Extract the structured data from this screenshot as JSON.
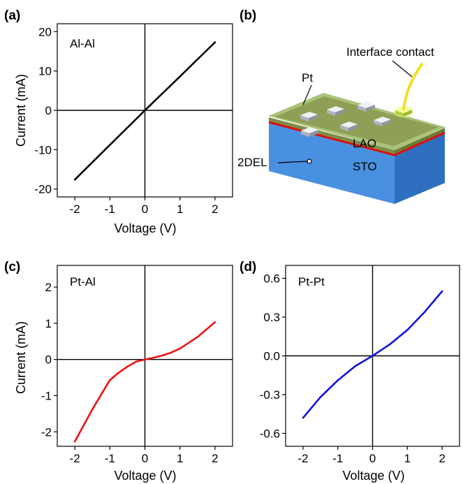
{
  "panels": {
    "a": {
      "label": "(a)",
      "annotation": "Al-Al",
      "xlabel": "Voltage (V)",
      "ylabel": "Current (mA)"
    },
    "b": {
      "label": "(b)",
      "annotations": {
        "interface": "Interface contact",
        "pt": "Pt",
        "lao": "LAO",
        "sto": "STO",
        "del": "2DEL"
      }
    },
    "c": {
      "label": "(c)",
      "annotation": "Pt-Al",
      "xlabel": "Voltage (V)",
      "ylabel": "Current (mA)"
    },
    "d": {
      "label": "(d)",
      "annotation": "Pt-Pt",
      "xlabel": "Voltage (V)",
      "ylabel": ""
    }
  },
  "colors": {
    "a": "#000000",
    "c": "#ee1111",
    "d": "#1111dd",
    "film": "#8f9f55",
    "film_top": "#a9c37a",
    "sto": "#4a90e0",
    "interface_line": "#dd1010",
    "wire": "#f0e020",
    "pad": "#d8dde6"
  },
  "chart_data": [
    {
      "id": "a",
      "type": "line",
      "title": "Al-Al",
      "xlabel": "Voltage (V)",
      "ylabel": "Current (mA)",
      "xlim": [
        -2.5,
        2.5
      ],
      "ylim": [
        -22,
        22
      ],
      "xticks": [
        -2,
        -1,
        0,
        1,
        2
      ],
      "yticks": [
        -20,
        -10,
        0,
        10,
        20
      ],
      "xtick_labels": [
        "-2",
        "-1",
        "0",
        "1",
        "2"
      ],
      "ytick_labels": [
        "-20",
        "-10",
        "0",
        "10",
        "20"
      ],
      "series": [
        {
          "x": [
            -2,
            -1,
            0,
            1,
            2
          ],
          "y": [
            -17.6,
            -8.8,
            0,
            8.6,
            17.3
          ]
        }
      ]
    },
    {
      "id": "c",
      "type": "line",
      "title": "Pt-Al",
      "xlabel": "Voltage (V)",
      "ylabel": "Current (mA)",
      "xlim": [
        -2.5,
        2.5
      ],
      "ylim": [
        -2.4,
        2.6
      ],
      "xticks": [
        -2,
        -1,
        0,
        1,
        2
      ],
      "yticks": [
        -2,
        -1,
        0,
        1,
        2
      ],
      "xtick_labels": [
        "-2",
        "-1",
        "0",
        "1",
        "2"
      ],
      "ytick_labels": [
        "-2",
        "-1",
        "0",
        "1",
        "2"
      ],
      "series": [
        {
          "x": [
            -2,
            -1.5,
            -1,
            -0.75,
            -0.5,
            -0.25,
            0,
            0.25,
            0.5,
            0.75,
            1,
            1.5,
            2
          ],
          "y": [
            -2.27,
            -1.38,
            -0.57,
            -0.37,
            -0.2,
            -0.06,
            0,
            0.05,
            0.11,
            0.19,
            0.3,
            0.62,
            1.03
          ]
        }
      ]
    },
    {
      "id": "d",
      "type": "line",
      "title": "Pt-Pt",
      "xlabel": "Voltage (V)",
      "ylabel": "",
      "xlim": [
        -2.5,
        2.5
      ],
      "ylim": [
        -0.7,
        0.7
      ],
      "xticks": [
        -2,
        -1,
        0,
        1,
        2
      ],
      "yticks": [
        -0.6,
        -0.3,
        0,
        0.3,
        0.6
      ],
      "xtick_labels": [
        "-2",
        "-1",
        "0",
        "1",
        "2"
      ],
      "ytick_labels": [
        "-0.6",
        "-0.3",
        "0.0",
        "0.3",
        "0.6"
      ],
      "series": [
        {
          "x": [
            -2,
            -1.5,
            -1,
            -0.5,
            0,
            0.5,
            1,
            1.5,
            2
          ],
          "y": [
            -0.48,
            -0.32,
            -0.19,
            -0.08,
            0,
            0.09,
            0.2,
            0.34,
            0.5
          ]
        }
      ]
    }
  ]
}
